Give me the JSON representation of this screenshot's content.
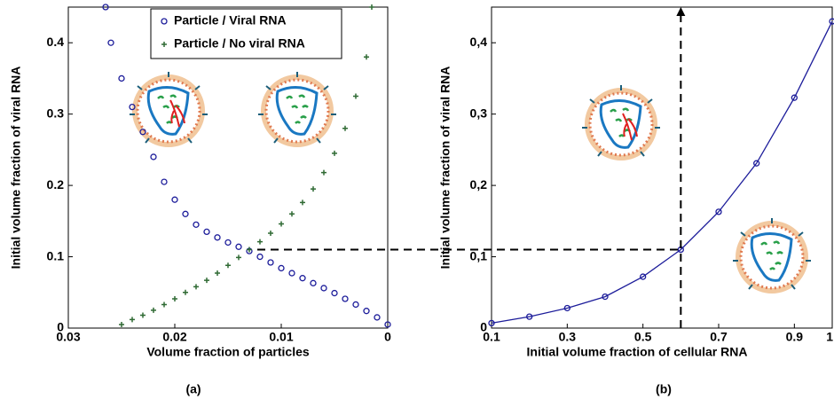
{
  "chart_data": [
    {
      "type": "scatter",
      "xlabel": "Volume fraction of particles",
      "ylabel": "Initial volume fraction of viral RNA",
      "caption": "(a)",
      "xlim": [
        0.03,
        0
      ],
      "xticks": [
        0.03,
        0.02,
        0.01,
        0
      ],
      "ylim": [
        0,
        0.45
      ],
      "yticks": [
        0,
        0.1,
        0.2,
        0.3,
        0.4
      ],
      "legend": "top",
      "series": [
        {
          "name": "Particle / Viral RNA",
          "color": "#1c1c9a",
          "marker": "o",
          "x": [
            0.0265,
            0.026,
            0.025,
            0.024,
            0.023,
            0.022,
            0.021,
            0.02,
            0.019,
            0.018,
            0.017,
            0.016,
            0.015,
            0.014,
            0.013,
            0.012,
            0.011,
            0.01,
            0.009,
            0.008,
            0.007,
            0.006,
            0.005,
            0.004,
            0.003,
            0.002,
            0.001,
            0
          ],
          "values": [
            0.45,
            0.4,
            0.35,
            0.31,
            0.275,
            0.24,
            0.205,
            0.18,
            0.16,
            0.145,
            0.135,
            0.127,
            0.12,
            0.114,
            0.108,
            0.1,
            0.092,
            0.084,
            0.077,
            0.07,
            0.063,
            0.056,
            0.049,
            0.041,
            0.033,
            0.024,
            0.015,
            0.005
          ]
        },
        {
          "name": "Particle / No viral RNA",
          "color": "#2f6a33",
          "marker": "+",
          "x": [
            0.025,
            0.024,
            0.023,
            0.022,
            0.021,
            0.02,
            0.019,
            0.018,
            0.017,
            0.016,
            0.015,
            0.014,
            0.013,
            0.012,
            0.011,
            0.01,
            0.009,
            0.008,
            0.007,
            0.006,
            0.005,
            0.004,
            0.003,
            0.002,
            0.0015
          ],
          "values": [
            0.005,
            0.012,
            0.018,
            0.025,
            0.033,
            0.041,
            0.05,
            0.058,
            0.067,
            0.077,
            0.088,
            0.099,
            0.11,
            0.121,
            0.133,
            0.146,
            0.16,
            0.176,
            0.195,
            0.218,
            0.245,
            0.28,
            0.325,
            0.38,
            0.45
          ]
        }
      ]
    },
    {
      "type": "line",
      "xlabel": "Initial volume fraction of cellular RNA",
      "ylabel": "Initial volume fraction of viral RNA",
      "caption": "(b)",
      "xlim": [
        0.1,
        1
      ],
      "xticks": [
        0.1,
        0.3,
        0.5,
        0.7,
        0.9,
        1
      ],
      "ylim": [
        0,
        0.45
      ],
      "yticks": [
        0,
        {
          "value": 0.1,
          "label": "0,1"
        },
        {
          "value": 0.2,
          "label": "0,2"
        },
        {
          "value": 0.3,
          "label": "0,3"
        },
        {
          "value": 0.4,
          "label": "0,4"
        }
      ],
      "reference_point": {
        "x": 0.6,
        "y": 0.11
      },
      "series": [
        {
          "color": "#1c1c9a",
          "marker": "o",
          "x": [
            0.1,
            0.2,
            0.3,
            0.4,
            0.5,
            0.6,
            0.7,
            0.8,
            0.9,
            1
          ],
          "values": [
            0.007,
            0.016,
            0.028,
            0.044,
            0.072,
            0.11,
            0.163,
            0.231,
            0.323,
            0.43
          ]
        }
      ]
    }
  ]
}
